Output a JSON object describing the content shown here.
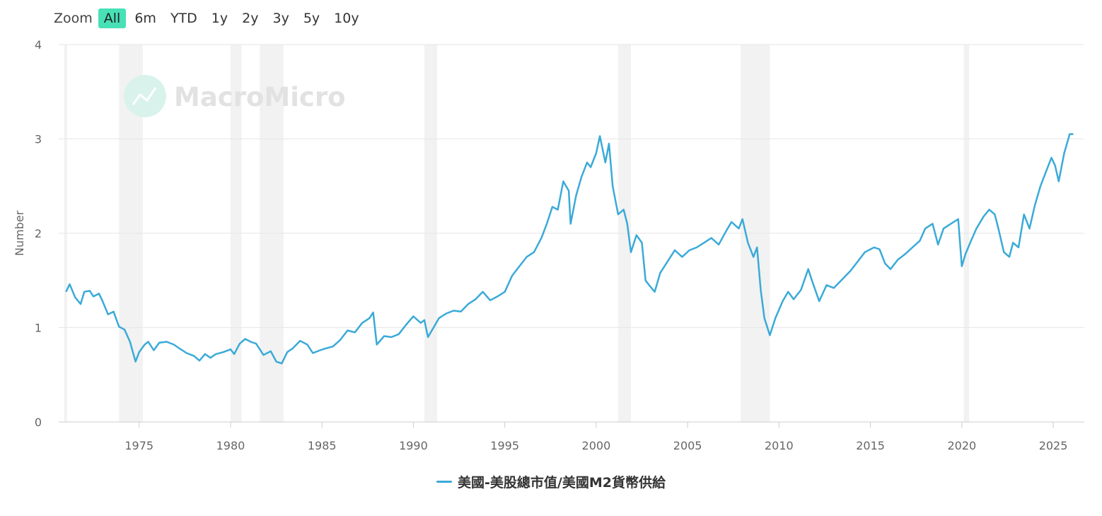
{
  "zoom": {
    "label": "Zoom",
    "buttons": [
      {
        "label": "All",
        "active": true
      },
      {
        "label": "6m",
        "active": false
      },
      {
        "label": "YTD",
        "active": false
      },
      {
        "label": "1y",
        "active": false
      },
      {
        "label": "2y",
        "active": false
      },
      {
        "label": "3y",
        "active": false
      },
      {
        "label": "5y",
        "active": false
      },
      {
        "label": "10y",
        "active": false
      }
    ]
  },
  "watermark": "MacroMicro",
  "colors": {
    "series": "#3aaad8",
    "recession": "#f2f2f2",
    "grid": "#e6e6e6",
    "active_zoom": "#47e0b7"
  },
  "chart_data": {
    "type": "line",
    "title": "",
    "xlabel": "",
    "ylabel": "Number",
    "xlim": [
      1970.6,
      2026.7
    ],
    "ylim": [
      0,
      4
    ],
    "y_ticks": [
      0,
      1,
      2,
      3,
      4
    ],
    "x_ticks": [
      1975,
      1980,
      1985,
      1990,
      1995,
      2000,
      2005,
      2010,
      2015,
      2020,
      2025
    ],
    "grid": true,
    "legend_position": "bottom-center",
    "recessions": [
      [
        1970.9,
        1971.0
      ],
      [
        1973.9,
        1975.2
      ],
      [
        1980.0,
        1980.6
      ],
      [
        1981.6,
        1982.9
      ],
      [
        1990.6,
        1991.3
      ],
      [
        2001.2,
        2001.9
      ],
      [
        2007.9,
        2009.5
      ],
      [
        2020.1,
        2020.4
      ]
    ],
    "series": [
      {
        "name": "美國-美股總市值/美國M2貨幣供給",
        "x": [
          1971.0,
          1971.2,
          1971.5,
          1971.8,
          1972.0,
          1972.3,
          1972.5,
          1972.8,
          1973.0,
          1973.3,
          1973.6,
          1973.9,
          1974.2,
          1974.5,
          1974.8,
          1975.0,
          1975.3,
          1975.5,
          1975.8,
          1976.1,
          1976.5,
          1976.9,
          1977.2,
          1977.6,
          1978.0,
          1978.3,
          1978.6,
          1978.9,
          1979.2,
          1979.6,
          1980.0,
          1980.2,
          1980.5,
          1980.8,
          1981.1,
          1981.4,
          1981.8,
          1982.2,
          1982.5,
          1982.8,
          1983.1,
          1983.4,
          1983.8,
          1984.2,
          1984.5,
          1984.9,
          1985.2,
          1985.6,
          1986.0,
          1986.4,
          1986.8,
          1987.2,
          1987.6,
          1987.8,
          1988.0,
          1988.4,
          1988.8,
          1989.2,
          1989.6,
          1990.0,
          1990.4,
          1990.6,
          1990.8,
          1991.1,
          1991.4,
          1991.8,
          1992.2,
          1992.6,
          1993.0,
          1993.4,
          1993.8,
          1994.2,
          1994.6,
          1995.0,
          1995.4,
          1995.8,
          1996.2,
          1996.6,
          1997.0,
          1997.3,
          1997.6,
          1997.9,
          1998.2,
          1998.5,
          1998.6,
          1998.9,
          1999.2,
          1999.5,
          1999.7,
          2000.0,
          2000.2,
          2000.5,
          2000.7,
          2000.9,
          2001.2,
          2001.5,
          2001.7,
          2001.9,
          2002.2,
          2002.5,
          2002.7,
          2002.9,
          2003.2,
          2003.5,
          2003.9,
          2004.3,
          2004.7,
          2005.1,
          2005.5,
          2005.9,
          2006.3,
          2006.7,
          2007.1,
          2007.4,
          2007.8,
          2008.0,
          2008.3,
          2008.6,
          2008.8,
          2009.0,
          2009.2,
          2009.5,
          2009.8,
          2010.2,
          2010.5,
          2010.8,
          2011.2,
          2011.6,
          2011.8,
          2012.2,
          2012.6,
          2013.0,
          2013.5,
          2013.9,
          2014.3,
          2014.7,
          2015.2,
          2015.5,
          2015.8,
          2016.1,
          2016.5,
          2016.9,
          2017.3,
          2017.7,
          2018.0,
          2018.4,
          2018.7,
          2019.0,
          2019.4,
          2019.8,
          2020.0,
          2020.2,
          2020.5,
          2020.8,
          2021.2,
          2021.5,
          2021.8,
          2022.0,
          2022.3,
          2022.6,
          2022.8,
          2023.1,
          2023.4,
          2023.7,
          2024.0,
          2024.3,
          2024.6,
          2024.9,
          2025.1,
          2025.3,
          2025.6,
          2025.9,
          2026.1
        ],
        "values": [
          1.38,
          1.46,
          1.32,
          1.25,
          1.38,
          1.39,
          1.33,
          1.36,
          1.28,
          1.14,
          1.17,
          1.01,
          0.98,
          0.85,
          0.64,
          0.74,
          0.82,
          0.85,
          0.76,
          0.84,
          0.85,
          0.82,
          0.78,
          0.73,
          0.7,
          0.65,
          0.72,
          0.68,
          0.72,
          0.74,
          0.77,
          0.72,
          0.83,
          0.88,
          0.85,
          0.83,
          0.71,
          0.75,
          0.64,
          0.62,
          0.74,
          0.78,
          0.86,
          0.82,
          0.73,
          0.76,
          0.78,
          0.8,
          0.87,
          0.97,
          0.95,
          1.05,
          1.1,
          1.16,
          0.82,
          0.91,
          0.9,
          0.93,
          1.03,
          1.12,
          1.05,
          1.08,
          0.9,
          1.0,
          1.1,
          1.15,
          1.18,
          1.17,
          1.25,
          1.3,
          1.38,
          1.29,
          1.33,
          1.38,
          1.55,
          1.65,
          1.75,
          1.8,
          1.95,
          2.1,
          2.28,
          2.25,
          2.55,
          2.45,
          2.1,
          2.4,
          2.6,
          2.75,
          2.7,
          2.85,
          3.03,
          2.75,
          2.95,
          2.5,
          2.2,
          2.25,
          2.1,
          1.8,
          1.98,
          1.9,
          1.5,
          1.45,
          1.38,
          1.58,
          1.7,
          1.82,
          1.75,
          1.82,
          1.85,
          1.9,
          1.95,
          1.88,
          2.02,
          2.12,
          2.05,
          2.15,
          1.9,
          1.75,
          1.85,
          1.4,
          1.1,
          0.92,
          1.1,
          1.28,
          1.38,
          1.3,
          1.4,
          1.62,
          1.5,
          1.28,
          1.45,
          1.42,
          1.52,
          1.6,
          1.7,
          1.8,
          1.85,
          1.83,
          1.68,
          1.62,
          1.72,
          1.78,
          1.85,
          1.92,
          2.05,
          2.1,
          1.88,
          2.05,
          2.1,
          2.15,
          1.65,
          1.78,
          1.92,
          2.05,
          2.18,
          2.25,
          2.2,
          2.05,
          1.8,
          1.75,
          1.9,
          1.85,
          2.2,
          2.05,
          2.3,
          2.5,
          2.65,
          2.8,
          2.72,
          2.55,
          2.85,
          3.05,
          3.05
        ]
      }
    ]
  }
}
